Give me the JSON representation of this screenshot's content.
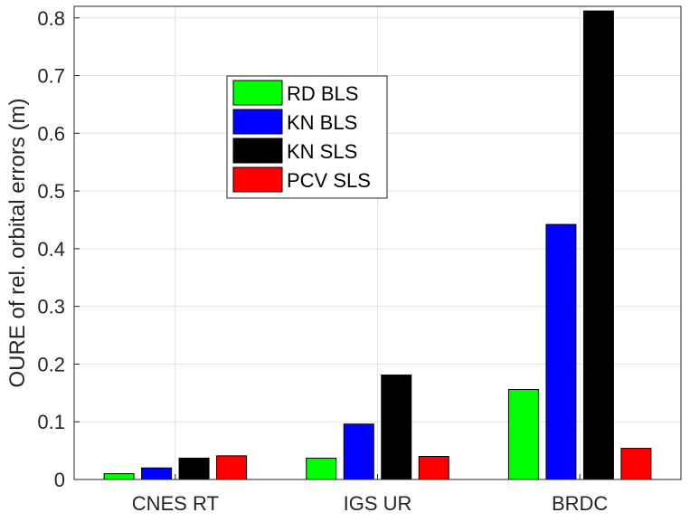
{
  "chart_data": {
    "type": "bar",
    "categories": [
      "CNES RT",
      "IGS UR",
      "BRDC"
    ],
    "series": [
      {
        "name": "RD BLS",
        "color": "#00ff00",
        "values": [
          0.01,
          0.037,
          0.156
        ]
      },
      {
        "name": "KN BLS",
        "color": "#0000ff",
        "values": [
          0.02,
          0.096,
          0.442
        ]
      },
      {
        "name": "KN SLS",
        "color": "#000000",
        "values": [
          0.037,
          0.181,
          0.812
        ]
      },
      {
        "name": "PCV SLS",
        "color": "#ff0000",
        "values": [
          0.041,
          0.04,
          0.054
        ]
      }
    ],
    "ylabel": "OURE of rel. orbital errors (m)",
    "xlabel": "",
    "title": "",
    "ylim": [
      0,
      0.82
    ],
    "yticks": [
      0,
      0.1,
      0.2,
      0.3,
      0.4,
      0.5,
      0.6,
      0.7,
      0.8
    ],
    "ytick_labels": [
      "0",
      "0.1",
      "0.2",
      "0.3",
      "0.4",
      "0.5",
      "0.6",
      "0.7",
      "0.8"
    ],
    "grid": true,
    "legend_position": "upper-left-center"
  }
}
